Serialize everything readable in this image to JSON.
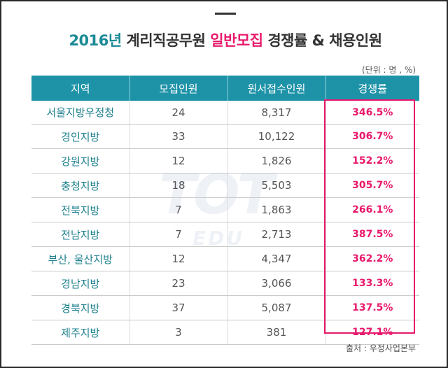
{
  "title": {
    "year": "2016년",
    "part1": " 계리직공무원 ",
    "accent": "일반모집",
    "part2": " 경쟁률 & 채용인원"
  },
  "unit_note": "(단위 : 명 , %)",
  "watermark": {
    "main": "TOT",
    "sub": "EDU"
  },
  "table": {
    "headers": [
      "지역",
      "모집인원",
      "원서접수인원",
      "경쟁률"
    ],
    "rows": [
      {
        "region": "서울지방우정청",
        "recruits": "24",
        "applicants": "8,317",
        "rate": "346.5%"
      },
      {
        "region": "경인지방",
        "recruits": "33",
        "applicants": "10,122",
        "rate": "306.7%"
      },
      {
        "region": "강원지방",
        "recruits": "12",
        "applicants": "1,826",
        "rate": "152.2%"
      },
      {
        "region": "충청지방",
        "recruits": "18",
        "applicants": "5,503",
        "rate": "305.7%"
      },
      {
        "region": "전북지방",
        "recruits": "7",
        "applicants": "1,863",
        "rate": "266.1%"
      },
      {
        "region": "전남지방",
        "recruits": "7",
        "applicants": "2,713",
        "rate": "387.5%"
      },
      {
        "region": "부산, 울산지방",
        "recruits": "12",
        "applicants": "4,347",
        "rate": "362.2%"
      },
      {
        "region": "경남지방",
        "recruits": "23",
        "applicants": "3,066",
        "rate": "133.3%"
      },
      {
        "region": "경북지방",
        "recruits": "37",
        "applicants": "5,087",
        "rate": "137.5%"
      },
      {
        "region": "제주지방",
        "recruits": "3",
        "applicants": "381",
        "rate": "127.1%"
      }
    ]
  },
  "source": "출처 : 우정사업본부",
  "colors": {
    "header_bg": "#1e93a8",
    "region_text": "#1b7f8c",
    "accent": "#e8196b",
    "title_text": "#333333"
  }
}
